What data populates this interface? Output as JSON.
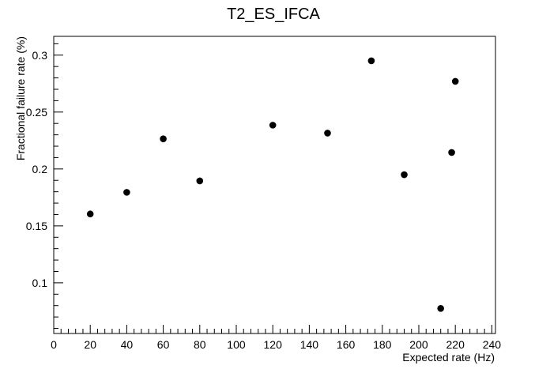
{
  "chart_data": {
    "type": "scatter",
    "title": "T2_ES_IFCA",
    "xlabel": "Expected rate (Hz)",
    "ylabel": "Fractional failure rate (%)",
    "xlim": [
      0,
      242
    ],
    "ylim": [
      0.0555,
      0.3165
    ],
    "x_major_ticks": [
      0,
      20,
      40,
      60,
      80,
      100,
      120,
      140,
      160,
      180,
      200,
      220,
      240
    ],
    "x_tick_labels": [
      "0",
      "20",
      "40",
      "60",
      "80",
      "100",
      "120",
      "140",
      "160",
      "180",
      "200",
      "220",
      "240"
    ],
    "y_major_ticks": [
      0.1,
      0.15,
      0.2,
      0.25,
      0.3
    ],
    "y_tick_labels": [
      "0.1",
      "0.15",
      "0.2",
      "0.25",
      "0.3"
    ],
    "grid": false,
    "marker": "filled-circle",
    "marker_color": "#000000",
    "series": [
      {
        "points": [
          {
            "x": 20,
            "y": 0.1605
          },
          {
            "x": 40,
            "y": 0.1795
          },
          {
            "x": 60,
            "y": 0.2265
          },
          {
            "x": 80,
            "y": 0.1895
          },
          {
            "x": 120,
            "y": 0.2385
          },
          {
            "x": 150,
            "y": 0.2315
          },
          {
            "x": 174,
            "y": 0.295
          },
          {
            "x": 192,
            "y": 0.195
          },
          {
            "x": 212,
            "y": 0.0775
          },
          {
            "x": 218,
            "y": 0.2145
          },
          {
            "x": 220,
            "y": 0.277
          }
        ]
      }
    ]
  }
}
